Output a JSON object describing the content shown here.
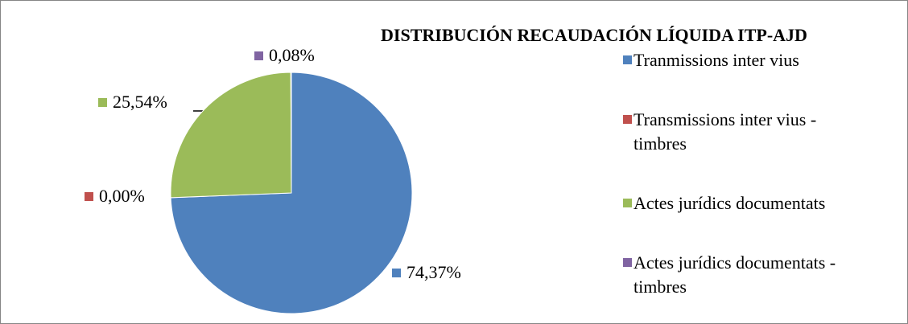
{
  "chart_data": {
    "type": "pie",
    "title": "DISTRIBUCIÓN RECAUDACIÓN LÍQUIDA  ITP-AJD",
    "categories": [
      "Tranmissions inter vius",
      "Transmissions inter vius - timbres",
      "Actes jurídics documentats",
      "Actes jurídics documentats - timbres"
    ],
    "values": [
      74.37,
      0.0,
      25.54,
      0.08
    ],
    "value_labels": [
      "74,37%",
      "0,00%",
      "25,54%",
      "0,08%"
    ],
    "colors": [
      "#4f81bd",
      "#c0504d",
      "#9bbb59",
      "#8064a2"
    ],
    "legend": "right"
  }
}
